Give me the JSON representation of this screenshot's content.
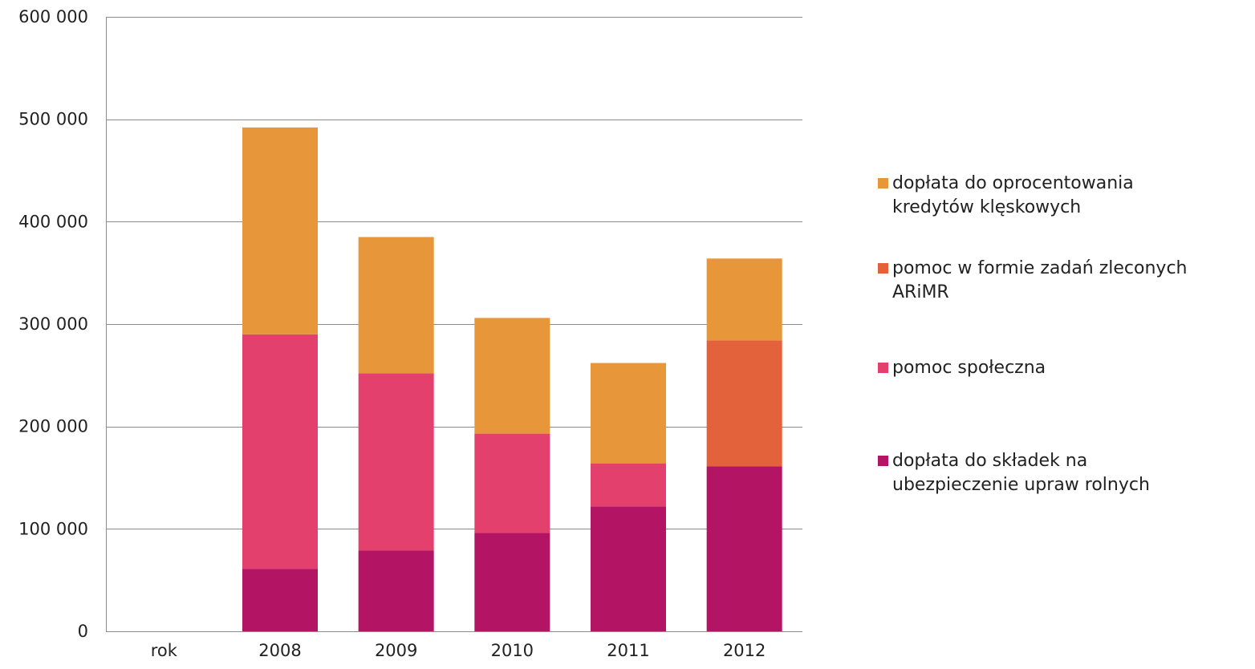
{
  "chart_data": {
    "type": "bar",
    "stacked": true,
    "title": "",
    "xlabel": "",
    "ylabel": "",
    "categories": [
      "rok",
      "2008",
      "2009",
      "2010",
      "2011",
      "2012"
    ],
    "ylim": [
      0,
      600000
    ],
    "y_ticks": [
      0,
      100000,
      200000,
      300000,
      400000,
      500000,
      600000
    ],
    "y_tick_labels": [
      "0",
      "100 000",
      "200 000",
      "300 000",
      "400 000",
      "500 000",
      "600 000"
    ],
    "grid": true,
    "legend_position": "right",
    "series": [
      {
        "name": "dopłata do składek na ubezpieczenie upraw rolnych",
        "legend_lines": [
          "dopłata do składek na",
          "ubezpieczenie upraw rolnych"
        ],
        "color": "#b31463",
        "values": [
          null,
          61000,
          79000,
          96000,
          122000,
          161000
        ]
      },
      {
        "name": "pomoc społeczna",
        "legend_lines": [
          "pomoc społeczna"
        ],
        "color": "#e3406e",
        "values": [
          null,
          229000,
          173000,
          97000,
          42000,
          0
        ]
      },
      {
        "name": "pomoc w formie zadań zleconych ARiMR",
        "legend_lines": [
          "pomoc w formie zadań zleconych",
          "ARiMR"
        ],
        "color": "#e3613b",
        "values": [
          null,
          0,
          0,
          0,
          0,
          123000
        ]
      },
      {
        "name": "dopłata do oprocentowania kredytów klęskowych",
        "legend_lines": [
          "dopłata do oprocentowania",
          "kredytów klęskowych"
        ],
        "color": "#e8963a",
        "values": [
          null,
          202000,
          133000,
          113000,
          98000,
          80000
        ]
      }
    ],
    "legend_order": [
      3,
      2,
      1,
      0
    ]
  }
}
